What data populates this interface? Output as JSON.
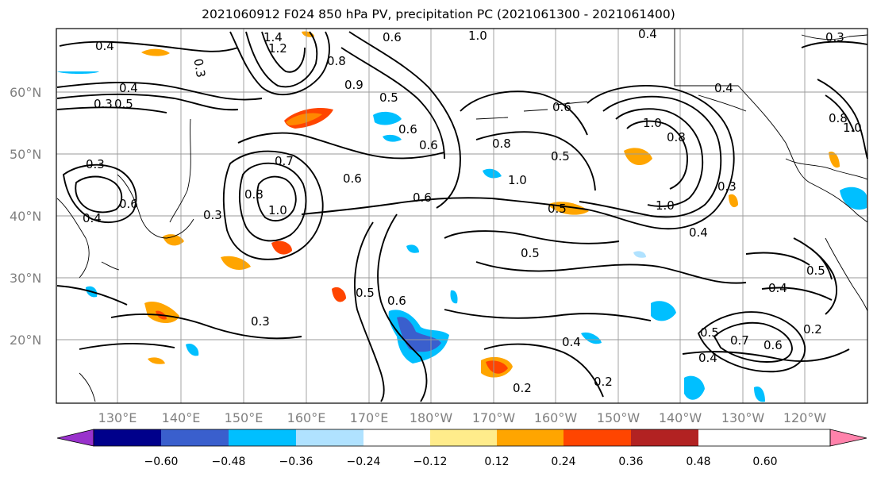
{
  "title": "2021060912 F024 850 hPa PV, precipitation PC (2021061300 - 2021061400)",
  "lat_labels": [
    "60°N",
    "50°N",
    "40°N",
    "30°N",
    "20°N"
  ],
  "lon_labels": [
    "130°E",
    "140°E",
    "150°E",
    "160°E",
    "170°E",
    "180°W",
    "170°W",
    "160°W",
    "150°W",
    "140°W",
    "130°W",
    "120°W"
  ],
  "colorbar": {
    "colors": [
      "#9932cc",
      "#00008b",
      "#3a5fcd",
      "#00bfff",
      "#b0e2ff",
      "#ffffff",
      "#ffec8b",
      "#ffa500",
      "#ff4500",
      "#b22222",
      "#ff82ab"
    ],
    "tick_labels": [
      "−0.60",
      "−0.48",
      "−0.36",
      "−0.24",
      "−0.12",
      "0.12",
      "0.24",
      "0.36",
      "0.48",
      "0.60"
    ]
  },
  "contour_labels": [
    "0.4",
    "1.4",
    "1.2",
    "0.3",
    "0.6",
    "1.0",
    "0.4",
    "0.3",
    "0.4",
    "0.3",
    "0.5",
    "0.5",
    "0.6",
    "0.8",
    "0.9",
    "0.6",
    "0.5",
    "0.6",
    "0.8",
    "0.5",
    "1.0",
    "0.8",
    "0.4",
    "0.8",
    "1.0",
    "0.3",
    "0.7",
    "0.6",
    "0.8",
    "1.0",
    "0.3",
    "0.6",
    "0.6",
    "0.5",
    "1.0",
    "1.0",
    "0.3",
    "0.4",
    "0.5",
    "0.5",
    "0.6",
    "0.3",
    "0.4",
    "0.2",
    "0.2",
    "0.4",
    "0.4",
    "0.5",
    "0.7",
    "0.6",
    "0.2",
    "0.4"
  ]
}
